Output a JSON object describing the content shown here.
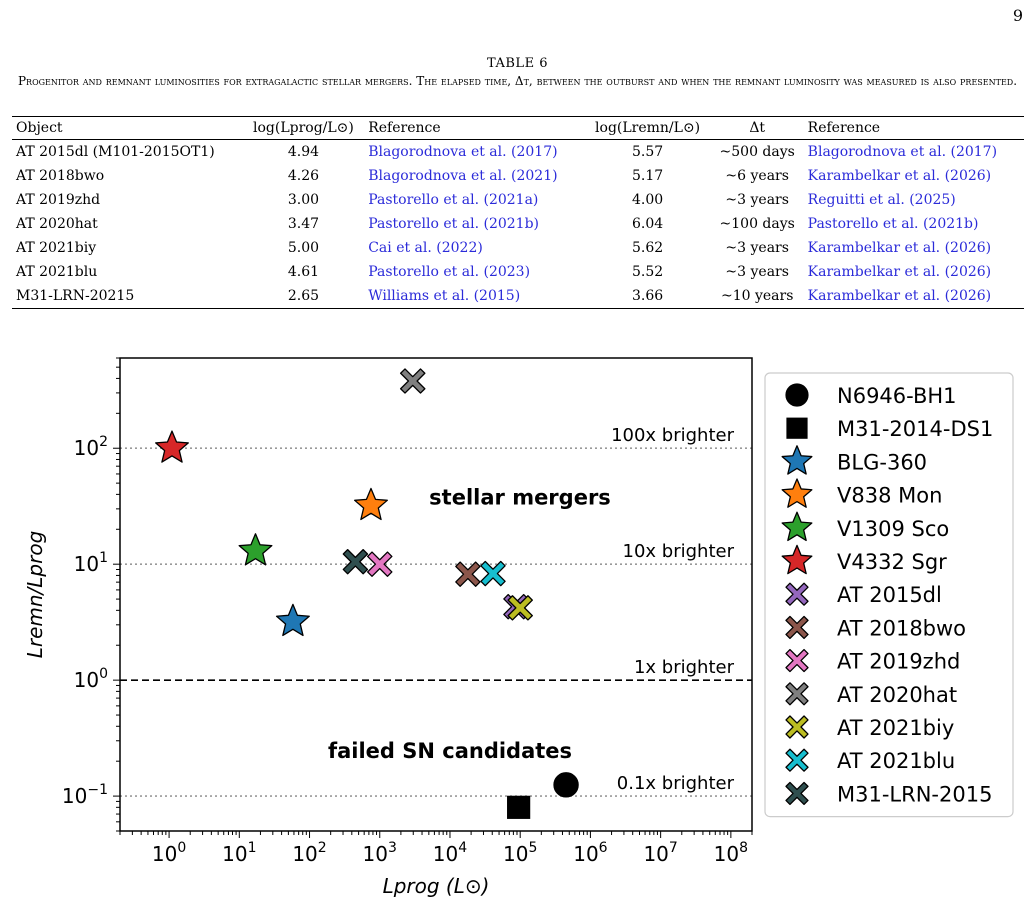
{
  "page_number": "9",
  "table": {
    "title": "TABLE 6",
    "caption": "Progenitor and remnant luminosities for extragalactic stellar mergers. The elapsed time, Δt, between the outburst and when the remnant luminosity was measured is also presented.",
    "headers": [
      "Object",
      "log(Lprog/L⊙)",
      "Reference",
      "log(Lremn/L⊙)",
      "Δt",
      "Reference"
    ],
    "rows": [
      [
        "AT 2015dl (M101-2015OT1)",
        "4.94",
        "Blagorodnova et al. (2017)",
        "5.57",
        "~500 days",
        "Blagorodnova et al. (2017)"
      ],
      [
        "AT 2018bwo",
        "4.26",
        "Blagorodnova et al. (2021)",
        "5.17",
        "~6 years",
        "Karambelkar et al. (2026)"
      ],
      [
        "AT 2019zhd",
        "3.00",
        "Pastorello et al. (2021a)",
        "4.00",
        "~3 years",
        "Reguitti et al. (2025)"
      ],
      [
        "AT 2020hat",
        "3.47",
        "Pastorello et al. (2021b)",
        "6.04",
        "~100 days",
        "Pastorello et al. (2021b)"
      ],
      [
        "AT 2021biy",
        "5.00",
        "Cai et al. (2022)",
        "5.62",
        "~3 years",
        "Karambelkar et al. (2026)"
      ],
      [
        "AT 2021blu",
        "4.61",
        "Pastorello et al. (2023)",
        "5.52",
        "~3 years",
        "Karambelkar et al. (2026)"
      ],
      [
        "M31-LRN-20215",
        "2.65",
        "Williams et al. (2015)",
        "3.66",
        "~10 years",
        "Karambelkar et al. (2026)"
      ]
    ]
  },
  "chart_data": {
    "type": "scatter",
    "xlabel": "Lprog (L⊙)",
    "ylabel": "Lremn/Lprog",
    "xscale": "log",
    "yscale": "log",
    "xlim": [
      0.2,
      200000000
    ],
    "ylim": [
      0.05,
      600
    ],
    "xticks": [
      {
        "value": 1,
        "label": "10^0"
      },
      {
        "value": 10,
        "label": "10^1"
      },
      {
        "value": 100,
        "label": "10^2"
      },
      {
        "value": 1000,
        "label": "10^3"
      },
      {
        "value": 10000,
        "label": "10^4"
      },
      {
        "value": 100000,
        "label": "10^5"
      },
      {
        "value": 1000000,
        "label": "10^6"
      },
      {
        "value": 10000000,
        "label": "10^7"
      },
      {
        "value": 100000000,
        "label": "10^8"
      }
    ],
    "yticks": [
      {
        "value": 0.1,
        "label": "10^-1"
      },
      {
        "value": 1,
        "label": "10^0"
      },
      {
        "value": 10,
        "label": "10^1"
      },
      {
        "value": 100,
        "label": "10^2"
      }
    ],
    "reference_lines": [
      {
        "y": 100,
        "label": "100x brighter",
        "style": "dotted"
      },
      {
        "y": 10,
        "label": "10x brighter",
        "style": "dotted"
      },
      {
        "y": 1,
        "label": "1x brighter",
        "style": "dashed"
      },
      {
        "y": 0.1,
        "label": "0.1x brighter",
        "style": "dotted"
      }
    ],
    "annotations": [
      "stellar mergers",
      "failed SN candidates"
    ],
    "legend_position": "right-outside",
    "series": [
      {
        "name": "N6946-BH1",
        "marker": "circle",
        "color": "#000000",
        "x": [
          450000
        ],
        "y": [
          0.125
        ]
      },
      {
        "name": "M31-2014-DS1",
        "marker": "square",
        "color": "#000000",
        "x": [
          95000
        ],
        "y": [
          0.08
        ]
      },
      {
        "name": "BLG-360",
        "marker": "star",
        "color": "#1f77b4",
        "x": [
          58
        ],
        "y": [
          3.2
        ]
      },
      {
        "name": "V838 Mon",
        "marker": "star",
        "color": "#ff7f0e",
        "x": [
          750
        ],
        "y": [
          32
        ]
      },
      {
        "name": "V1309 Sco",
        "marker": "star",
        "color": "#2ca02c",
        "x": [
          17
        ],
        "y": [
          13
        ]
      },
      {
        "name": "V4332 Sgr",
        "marker": "star",
        "color": "#d62728",
        "x": [
          1.1
        ],
        "y": [
          100
        ]
      },
      {
        "name": "AT 2015dl",
        "marker": "x",
        "color": "#9467bd",
        "x": [
          87000
        ],
        "y": [
          4.3
        ]
      },
      {
        "name": "AT 2018bwo",
        "marker": "x",
        "color": "#8c564b",
        "x": [
          18000
        ],
        "y": [
          8.2
        ]
      },
      {
        "name": "AT 2019zhd",
        "marker": "x",
        "color": "#e377c2",
        "x": [
          1000
        ],
        "y": [
          10
        ]
      },
      {
        "name": "AT 2020hat",
        "marker": "x",
        "color": "#7f7f7f",
        "x": [
          2950
        ],
        "y": [
          380
        ]
      },
      {
        "name": "AT 2021biy",
        "marker": "x",
        "color": "#bcbd22",
        "x": [
          100000
        ],
        "y": [
          4.2
        ]
      },
      {
        "name": "AT 2021blu",
        "marker": "x",
        "color": "#17becf",
        "x": [
          41000
        ],
        "y": [
          8.3
        ]
      },
      {
        "name": "M31-LRN-2015",
        "marker": "x",
        "color": "#2f4f4f",
        "x": [
          450
        ],
        "y": [
          10.5
        ]
      }
    ]
  }
}
